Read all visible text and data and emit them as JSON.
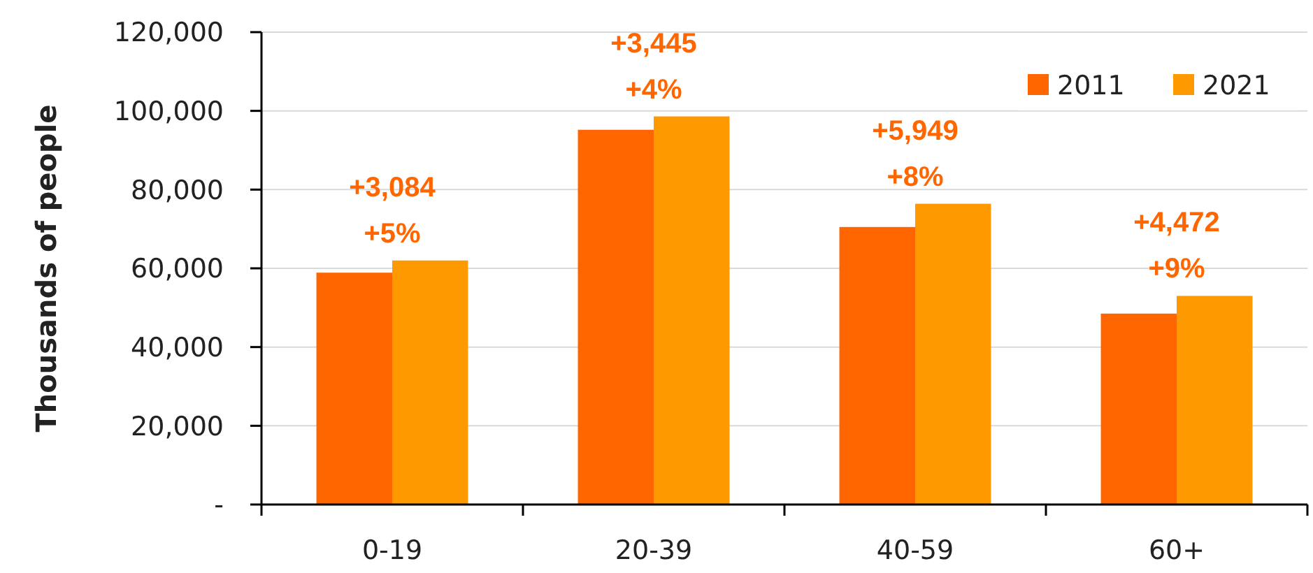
{
  "chart_data": {
    "type": "bar",
    "ylabel": "Thousands of people",
    "categories": [
      "0-19",
      "20-39",
      "40-59",
      "60+"
    ],
    "series": [
      {
        "name": "2011",
        "color": "#ff6600",
        "values": [
          58900,
          95200,
          70500,
          48500
        ]
      },
      {
        "name": "2021",
        "color": "#ff9900",
        "values": [
          62000,
          98600,
          76400,
          53000
        ]
      }
    ],
    "ylim": [
      0,
      120000
    ],
    "yticks": [
      {
        "value": 0,
        "label": "-"
      },
      {
        "value": 20000,
        "label": "20,000"
      },
      {
        "value": 40000,
        "label": "40,000"
      },
      {
        "value": 60000,
        "label": "60,000"
      },
      {
        "value": 80000,
        "label": "80,000"
      },
      {
        "value": 100000,
        "label": "100,000"
      },
      {
        "value": 120000,
        "label": "120,000"
      }
    ],
    "grid": "y",
    "legend": "top right",
    "annotations": [
      "+3,084",
      "+5%",
      "+3,445",
      "+4%",
      "+5,949",
      "+8%",
      "+4,472",
      "+9%"
    ]
  }
}
